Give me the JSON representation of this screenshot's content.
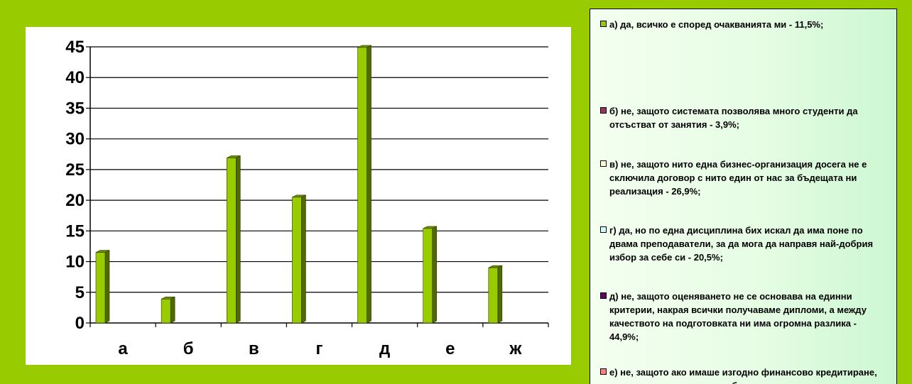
{
  "chart_data": {
    "type": "bar",
    "categories": [
      "а",
      "б",
      "в",
      "г",
      "д",
      "е",
      "ж"
    ],
    "values": [
      11.5,
      3.9,
      26.9,
      20.5,
      44.9,
      15.4,
      9.0
    ],
    "ylim": [
      0,
      45
    ],
    "yticks": [
      "0",
      "5",
      "10",
      "15",
      "20",
      "25",
      "30",
      "35",
      "40",
      "45"
    ],
    "grid": true,
    "legend_position": "right",
    "colors": {
      "bar_front": "#99cc00",
      "bar_side": "#4f6a00",
      "bar_top": "#6f8f00",
      "background": "#99cc00"
    },
    "legend": [
      {
        "text": "а) да, всичко е според очакванията ми - 11,5%;",
        "color": "#99cc00"
      },
      {
        "text": "б) не, защото системата позволява много студенти да отсъстват от занятия - 3,9%;",
        "color": "#993366"
      },
      {
        "text": "в) не, защото нито една бизнес-организация досега не е сключила договор с нито един от нас за бъдещата ни реализация - 26,9%;",
        "color": "#ffffcc"
      },
      {
        "text": "г) да, но по една дисциплина бих искал да има поне по двама преподаватели, за да мога да направя най-добрия избор за себе си - 20,5%;",
        "color": "#ccffff"
      },
      {
        "text": "д) не, защото оценяването не се основава на единни критерии, накрая всички получаваме дипломи, а между качеството на подготовката ни има огромна разлика - 44,9%;",
        "color": "#660066"
      },
      {
        "text": "е) не, защото ако имаше изгодно финансово кредитиране, преподавателите щяха да бъдат",
        "color": "#ff8080"
      }
    ]
  }
}
